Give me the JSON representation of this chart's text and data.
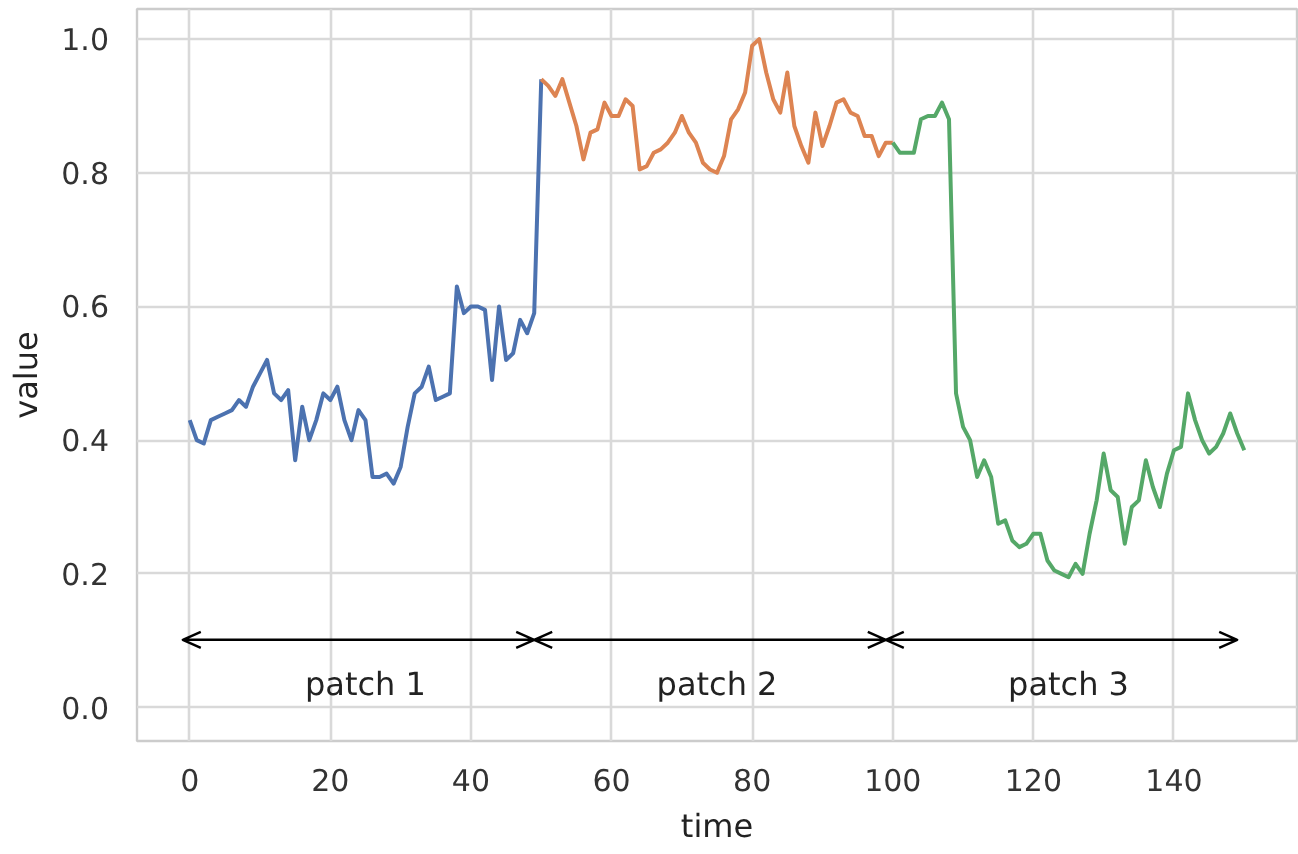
{
  "chart_data": {
    "type": "line",
    "xlabel": "time",
    "ylabel": "value",
    "xlim": [
      -7.5,
      157.5
    ],
    "ylim": [
      -0.05,
      1.045
    ],
    "xticks": [
      0,
      20,
      40,
      60,
      80,
      100,
      120,
      140
    ],
    "yticks": [
      {
        "value": 0,
        "label": "0.0"
      },
      {
        "value": 0.2,
        "label": "0.2"
      },
      {
        "value": 0.4,
        "label": "0.4"
      },
      {
        "value": 0.6,
        "label": "0.6"
      },
      {
        "value": 0.8,
        "label": "0.8"
      },
      {
        "value": 1.0,
        "label": "1.0"
      }
    ],
    "grid": true,
    "series": [
      {
        "color": "#4c72b0",
        "x": [
          0,
          1,
          2,
          3,
          4,
          5,
          6,
          7,
          8,
          9,
          10,
          11,
          12,
          13,
          14,
          15,
          16,
          17,
          18,
          19,
          20,
          21,
          22,
          23,
          24,
          25,
          26,
          27,
          28,
          29,
          30,
          31,
          32,
          33,
          34,
          35,
          36,
          37,
          38,
          39,
          40,
          41,
          42,
          43,
          44,
          45,
          46,
          47,
          48,
          49,
          50
        ],
        "values": [
          0.43,
          0.4,
          0.395,
          0.43,
          0.435,
          0.44,
          0.445,
          0.46,
          0.45,
          0.48,
          0.5,
          0.52,
          0.47,
          0.46,
          0.475,
          0.37,
          0.45,
          0.4,
          0.43,
          0.47,
          0.46,
          0.48,
          0.43,
          0.4,
          0.445,
          0.43,
          0.345,
          0.345,
          0.35,
          0.335,
          0.36,
          0.42,
          0.47,
          0.48,
          0.51,
          0.46,
          0.465,
          0.47,
          0.63,
          0.59,
          0.6,
          0.6,
          0.595,
          0.49,
          0.6,
          0.52,
          0.53,
          0.58,
          0.56,
          0.59,
          0.94
        ]
      },
      {
        "color": "#dd8452",
        "x": [
          50,
          51,
          52,
          53,
          54,
          55,
          56,
          57,
          58,
          59,
          60,
          61,
          62,
          63,
          64,
          65,
          66,
          67,
          68,
          69,
          70,
          71,
          72,
          73,
          74,
          75,
          76,
          77,
          78,
          79,
          80,
          81,
          82,
          83,
          84,
          85,
          86,
          87,
          88,
          89,
          90,
          91,
          92,
          93,
          94,
          95,
          96,
          97,
          98,
          99,
          100
        ],
        "values": [
          0.94,
          0.93,
          0.915,
          0.94,
          0.905,
          0.87,
          0.82,
          0.86,
          0.865,
          0.905,
          0.885,
          0.885,
          0.91,
          0.9,
          0.805,
          0.81,
          0.83,
          0.835,
          0.845,
          0.86,
          0.885,
          0.86,
          0.845,
          0.815,
          0.805,
          0.8,
          0.825,
          0.88,
          0.895,
          0.92,
          0.99,
          1.0,
          0.95,
          0.91,
          0.89,
          0.95,
          0.87,
          0.84,
          0.815,
          0.89,
          0.84,
          0.87,
          0.905,
          0.91,
          0.89,
          0.885,
          0.855,
          0.855,
          0.825,
          0.845,
          0.845
        ]
      },
      {
        "color": "#55a868",
        "x": [
          100,
          101,
          102,
          103,
          104,
          105,
          106,
          107,
          108,
          109,
          110,
          111,
          112,
          113,
          114,
          115,
          116,
          117,
          118,
          119,
          120,
          121,
          122,
          123,
          124,
          125,
          126,
          127,
          128,
          129,
          130,
          131,
          132,
          133,
          134,
          135,
          136,
          137,
          138,
          139,
          140,
          141,
          142,
          143,
          144,
          145,
          146,
          147,
          148,
          149,
          150
        ],
        "values": [
          0.845,
          0.83,
          0.83,
          0.83,
          0.88,
          0.885,
          0.885,
          0.905,
          0.88,
          0.47,
          0.42,
          0.4,
          0.345,
          0.37,
          0.345,
          0.275,
          0.28,
          0.25,
          0.24,
          0.245,
          0.26,
          0.26,
          0.22,
          0.205,
          0.2,
          0.195,
          0.215,
          0.2,
          0.26,
          0.31,
          0.38,
          0.325,
          0.315,
          0.245,
          0.3,
          0.31,
          0.37,
          0.33,
          0.3,
          0.35,
          0.385,
          0.39,
          0.47,
          0.43,
          0.4,
          0.38,
          0.39,
          0.41,
          0.44,
          0.41,
          0.385
        ]
      }
    ],
    "annotations": [
      "patch 1",
      "patch 2",
      "patch 3"
    ]
  }
}
